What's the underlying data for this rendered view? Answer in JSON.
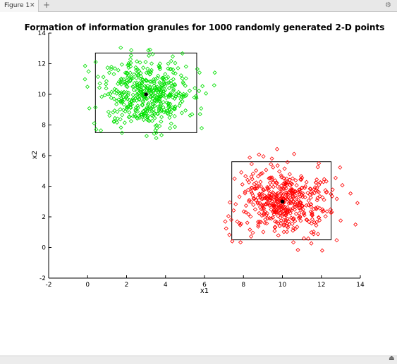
{
  "window": {
    "tab_label": "Figure 1",
    "tab_close_icon": "close-icon",
    "add_tab_icon": "plus-icon",
    "settings_icon": "gear-icon",
    "collapse_icon": "eject-icon"
  },
  "chart_data": {
    "type": "scatter",
    "title": "Formation of information granules for 1000 randomly generated 2-D points",
    "xlabel": "x1",
    "ylabel": "x2",
    "xlim": [
      -2,
      14
    ],
    "ylim": [
      -2,
      14
    ],
    "x_ticks": [
      -2,
      0,
      2,
      4,
      6,
      8,
      10,
      12,
      14
    ],
    "y_ticks": [
      -2,
      0,
      2,
      4,
      6,
      8,
      10,
      12,
      14
    ],
    "grid": false,
    "marker": "diamond",
    "series": [
      {
        "color": "#00e000",
        "count": 500,
        "center": [
          3,
          10
        ],
        "spread": [
          1.2,
          1.1
        ],
        "granule_box": {
          "x1": [
            0.4,
            5.6
          ],
          "x2": [
            7.5,
            12.7
          ]
        }
      },
      {
        "color": "#ff0000",
        "count": 500,
        "center": [
          10,
          3
        ],
        "spread": [
          1.2,
          1.1
        ],
        "granule_box": {
          "x1": [
            7.4,
            12.5
          ],
          "x2": [
            0.5,
            5.6
          ]
        }
      }
    ]
  }
}
